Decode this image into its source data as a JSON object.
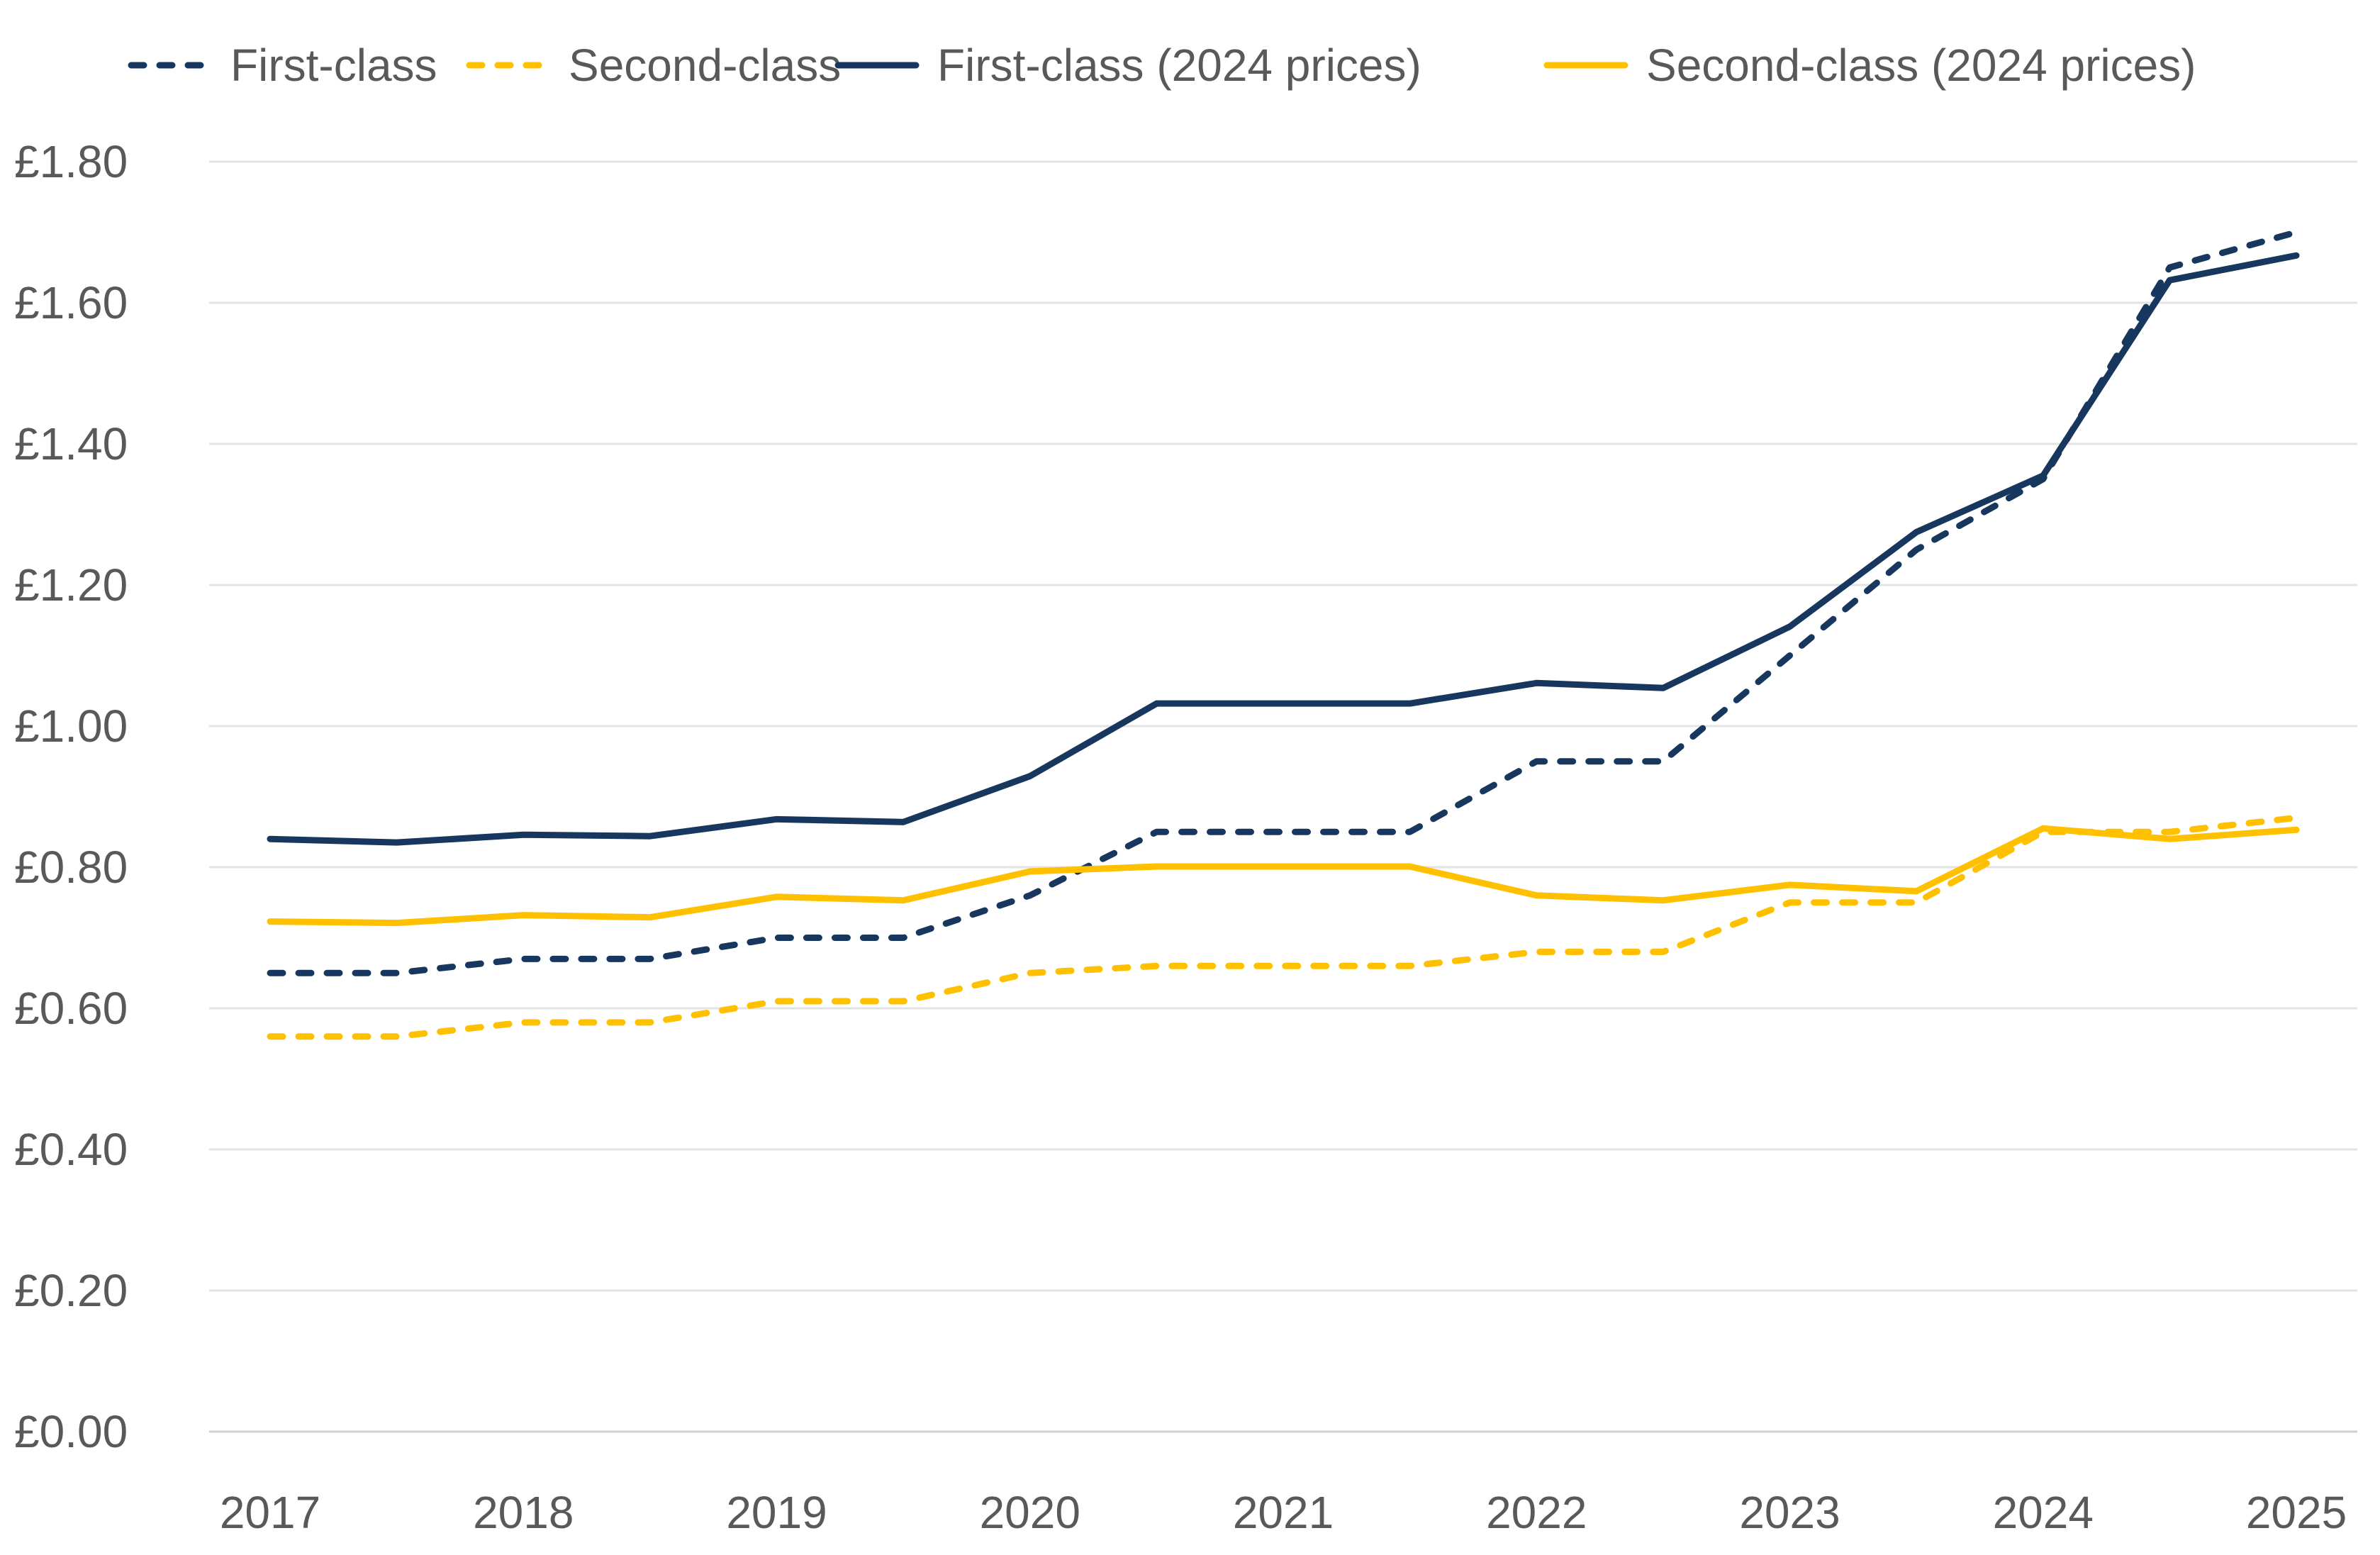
{
  "chart_data": {
    "type": "line",
    "title": "",
    "xlabel": "",
    "ylabel": "",
    "x": [
      2017,
      2017.5,
      2018,
      2018.5,
      2019,
      2019.5,
      2020,
      2020.5,
      2021,
      2021.5,
      2022,
      2022.5,
      2023,
      2023.5,
      2024,
      2024.5,
      2025
    ],
    "x_ticks": [
      "2017",
      "2018",
      "2019",
      "2020",
      "2021",
      "2022",
      "2023",
      "2024",
      "2025"
    ],
    "y_ticks": [
      "£0.00",
      "£0.20",
      "£0.40",
      "£0.60",
      "£0.80",
      "£1.00",
      "£1.20",
      "£1.40",
      "£1.60",
      "£1.80"
    ],
    "ylim": [
      0,
      1.8
    ],
    "grid": true,
    "legend_position": "top",
    "series": [
      {
        "name": "First-class",
        "color": "#17375e",
        "dashed": true,
        "values": [
          0.65,
          0.65,
          0.67,
          0.67,
          0.7,
          0.7,
          0.76,
          0.85,
          0.85,
          0.85,
          0.95,
          0.95,
          1.1,
          1.25,
          1.35,
          1.65,
          1.7
        ]
      },
      {
        "name": "Second-class",
        "color": "#ffc000",
        "dashed": true,
        "values": [
          0.56,
          0.56,
          0.58,
          0.58,
          0.61,
          0.61,
          0.65,
          0.66,
          0.66,
          0.66,
          0.68,
          0.68,
          0.75,
          0.75,
          0.85,
          0.85,
          0.87
        ]
      },
      {
        "name": "First-class (2024 prices)",
        "color": "#17375e",
        "dashed": false,
        "values": [
          0.84,
          0.835,
          0.846,
          0.844,
          0.868,
          0.864,
          0.929,
          1.032,
          1.032,
          1.032,
          1.061,
          1.054,
          1.141,
          1.275,
          1.355,
          1.632,
          1.667
        ]
      },
      {
        "name": "Second-class (2024 prices)",
        "color": "#ffc000",
        "dashed": false,
        "values": [
          0.723,
          0.721,
          0.732,
          0.729,
          0.758,
          0.753,
          0.794,
          0.801,
          0.801,
          0.801,
          0.76,
          0.753,
          0.775,
          0.766,
          0.855,
          0.84,
          0.853
        ]
      }
    ]
  }
}
